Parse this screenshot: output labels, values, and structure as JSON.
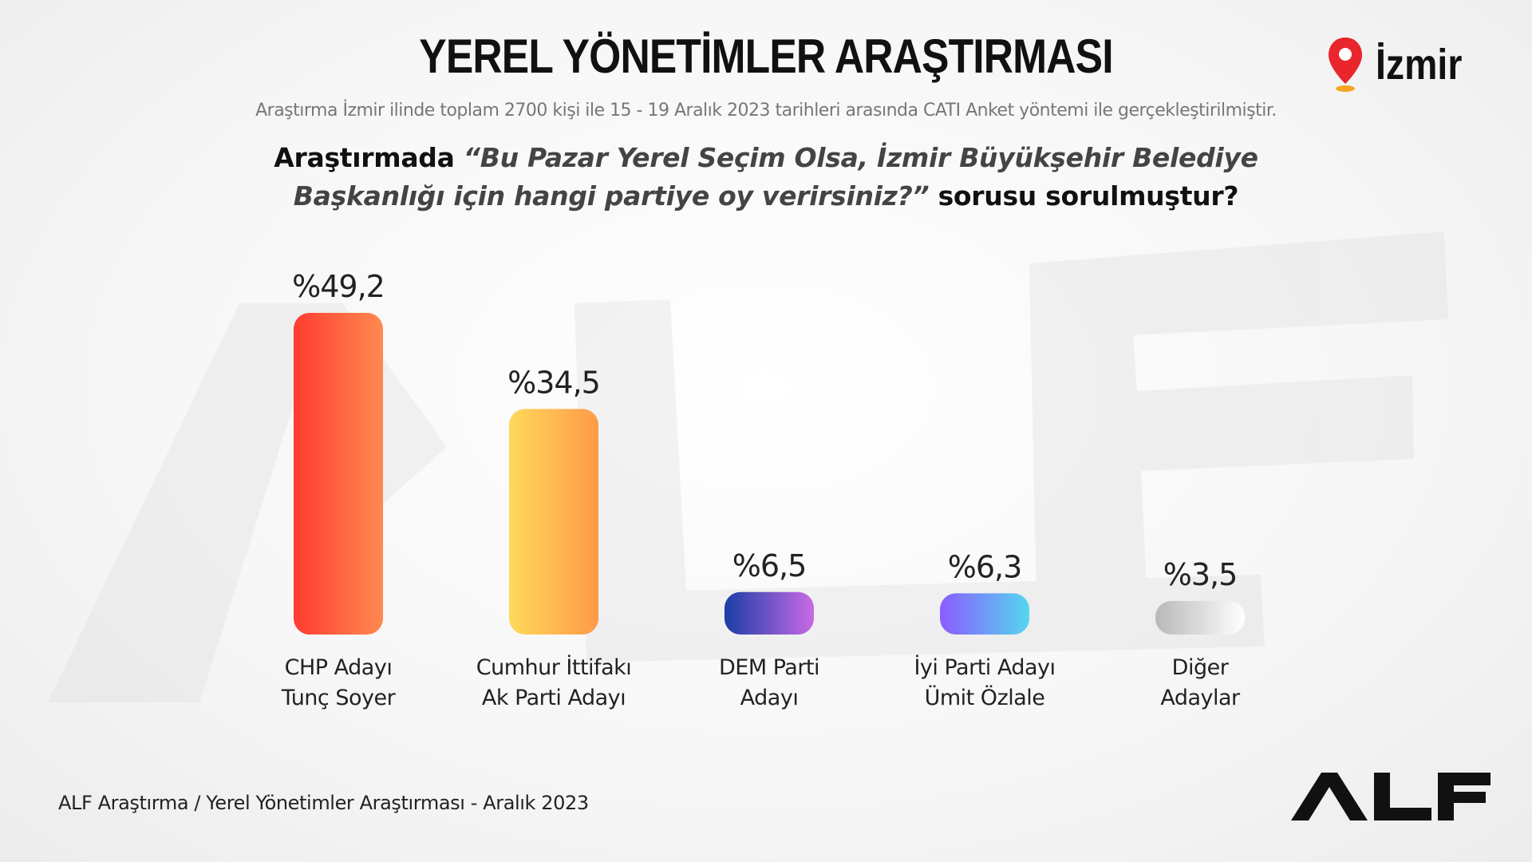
{
  "header": {
    "title": "YEREL YÖNETİMLER ARAŞTIRMASI",
    "subtitle": "Araştırma İzmir ilinde toplam 2700 kişi ile 15 - 19  Aralık 2023 tarihleri arasında CATI Anket yöntemi ile gerçekleştirilmiştir.",
    "city": "İzmir",
    "city_icon": "location-pin-icon"
  },
  "question": {
    "prefix": "Araştırmada ",
    "quote": "“Bu Pazar Yerel Seçim Olsa, İzmir Büyükşehir Belediye Başkanlığı için hangi partiye oy verirsiniz?”",
    "suffix": " sorusu  sorulmuştur?"
  },
  "footer": {
    "source": "ALF Araştırma / Yerel Yönetimler Araştırması - Aralık 2023",
    "logo": "ALF"
  },
  "chart_data": {
    "type": "bar",
    "categories": [
      [
        "CHP Adayı",
        "Tunç Soyer"
      ],
      [
        "Cumhur İttifakı",
        "Ak Parti Adayı"
      ],
      [
        "DEM Parti",
        "Adayı"
      ],
      [
        "İyi Parti Adayı",
        "Ümit Özlale"
      ],
      [
        "Diğer",
        "Adaylar"
      ]
    ],
    "values": [
      49.2,
      34.5,
      6.5,
      6.3,
      3.5
    ],
    "value_labels": [
      "%49,2",
      "%34,5",
      "%6,5",
      "%6,3",
      "%3,5"
    ],
    "ylim": [
      0,
      49.2
    ],
    "grid": false,
    "colors": [
      [
        "#ff3b30",
        "#ff8a50"
      ],
      [
        "#ffd95a",
        "#ff9a48"
      ],
      [
        "#1a3ea6",
        "#c86ae6"
      ],
      [
        "#8a5cff",
        "#55d6ee"
      ],
      [
        "#b8b8b8",
        "#ffffff"
      ]
    ]
  }
}
